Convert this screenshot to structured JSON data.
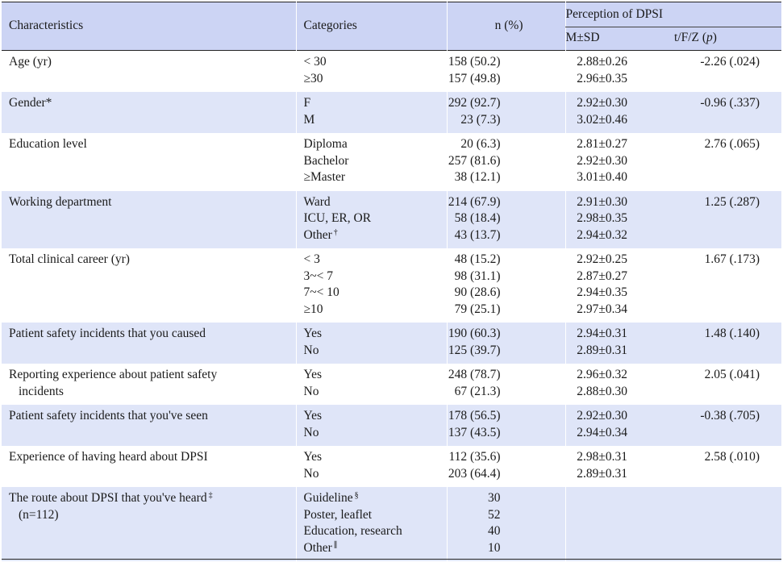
{
  "header": {
    "characteristics": "Characteristics",
    "categories": "Categories",
    "n_pct": "n (%)",
    "perception_group": "Perception of DPSI",
    "msd": "M±SD",
    "stat_prefix": "t/F/Z (",
    "stat_p": "p",
    "stat_suffix": ")"
  },
  "rows": [
    {
      "char": "Age (yr)",
      "char2": "",
      "cats": [
        "< 30",
        "≥30"
      ],
      "n": [
        "158 (50.2)",
        "157 (49.8)"
      ],
      "msd": [
        "2.88±0.26",
        "2.96±0.35"
      ],
      "stat": "-2.26 (.024)"
    },
    {
      "char": "Gender*",
      "char2": "",
      "cats": [
        "F",
        "M"
      ],
      "n": [
        "292 (92.7)",
        "23 (7.3)"
      ],
      "msd": [
        "2.92±0.30",
        "3.02±0.46"
      ],
      "stat": "-0.96 (.337)"
    },
    {
      "char": "Education level",
      "char2": "",
      "cats": [
        "Diploma",
        "Bachelor",
        "≥Master"
      ],
      "n": [
        "20 (6.3)",
        "257 (81.6)",
        "38 (12.1)"
      ],
      "msd": [
        "2.81±0.27",
        "2.92±0.30",
        "3.01±0.40"
      ],
      "stat": "2.76 (.065)"
    },
    {
      "char": "Working department",
      "char2": "",
      "cats": [
        "Ward",
        "ICU, ER, OR",
        "Other"
      ],
      "n": [
        "214 (67.9)",
        "58 (18.4)",
        "43 (13.7)"
      ],
      "msd": [
        "2.91±0.30",
        "2.98±0.35",
        "2.94±0.32"
      ],
      "stat": "1.25 (.287)"
    },
    {
      "char": "Total clinical career (yr)",
      "char2": "",
      "cats": [
        "< 3",
        "3~< 7",
        "7~< 10",
        "≥10"
      ],
      "n": [
        "48 (15.2)",
        "98 (31.1)",
        "90 (28.6)",
        "79 (25.1)"
      ],
      "msd": [
        "2.92±0.25",
        "2.87±0.27",
        "2.94±0.35",
        "2.97±0.34"
      ],
      "stat": "1.67 (.173)"
    },
    {
      "char": "Patient safety incidents that you caused",
      "char2": "",
      "cats": [
        "Yes",
        "No"
      ],
      "n": [
        "190 (60.3)",
        "125 (39.7)"
      ],
      "msd": [
        "2.94±0.31",
        "2.89±0.31"
      ],
      "stat": "1.48 (.140)"
    },
    {
      "char": "Reporting experience about patient safety",
      "char2": "incidents",
      "cats": [
        "Yes",
        "No"
      ],
      "n": [
        "248 (78.7)",
        "67 (21.3)"
      ],
      "msd": [
        "2.96±0.32",
        "2.88±0.30"
      ],
      "stat": "2.05 (.041)"
    },
    {
      "char": "Patient safety incidents that you've seen",
      "char2": "",
      "cats": [
        "Yes",
        "No"
      ],
      "n": [
        "178 (56.5)",
        "137 (43.5)"
      ],
      "msd": [
        "2.92±0.30",
        "2.94±0.34"
      ],
      "stat": "-0.38 (.705)"
    },
    {
      "char": "Experience of having heard about DPSI",
      "char2": "",
      "cats": [
        "Yes",
        "No"
      ],
      "n": [
        "112 (35.6)",
        "203 (64.4)"
      ],
      "msd": [
        "2.98±0.31",
        "2.89±0.31"
      ],
      "stat": "2.58 (.010)"
    },
    {
      "char": "The route about DPSI that you've heard",
      "char2": "(n=112)",
      "cats": [
        "Guideline",
        "Poster, leaflet",
        "Education, research",
        "Other"
      ],
      "n": [
        "30",
        "52",
        "40",
        "10"
      ],
      "msd": [],
      "stat": ""
    }
  ],
  "footnote_marks": {
    "dagger": "†",
    "double_dagger": "‡",
    "section": "§",
    "parallel": "∥"
  }
}
